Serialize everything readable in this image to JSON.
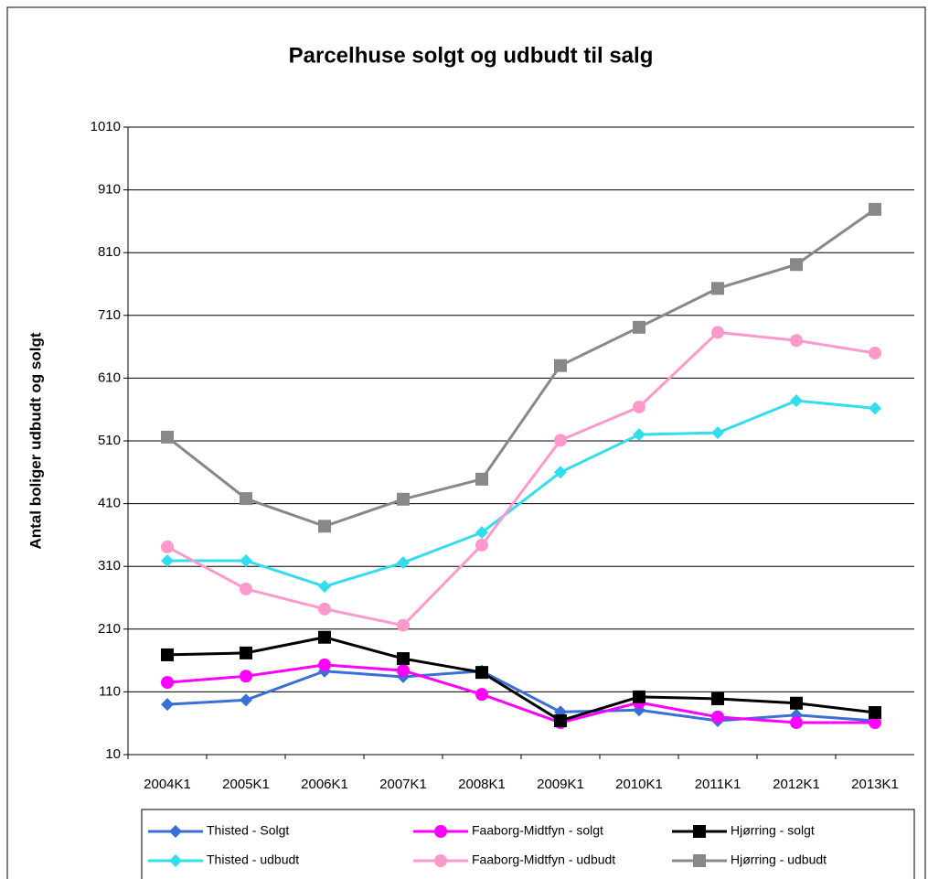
{
  "chart_data": {
    "type": "line",
    "title": "Parcelhuse solgt og udbudt til salg",
    "y_label": "Antal boliger udbudt og solgt",
    "categories": [
      "2004K1",
      "2005K1",
      "2006K1",
      "2007K1",
      "2008K1",
      "2009K1",
      "2010K1",
      "2011K1",
      "2012K1",
      "2013K1"
    ],
    "series": [
      {
        "name": "Thisted - Solgt",
        "color": "#3a6fd8",
        "marker": "diamond",
        "values": [
          90,
          97,
          143,
          134,
          143,
          78,
          81,
          64,
          73,
          64
        ]
      },
      {
        "name": "Faaborg-Midtfyn - solgt",
        "color": "#ff00ff",
        "marker": "circle",
        "values": [
          125,
          135,
          153,
          144,
          106,
          61,
          93,
          70,
          61,
          61
        ]
      },
      {
        "name": "Hjørring - solgt",
        "color": "#000000",
        "marker": "square",
        "values": [
          169,
          172,
          197,
          163,
          141,
          64,
          102,
          99,
          92,
          77
        ]
      },
      {
        "name": "Thisted - udbudt",
        "color": "#33ddee",
        "marker": "diamond",
        "values": [
          319,
          319,
          278,
          316,
          364,
          460,
          520,
          523,
          574,
          562
        ]
      },
      {
        "name": "Faaborg-Midtfyn - udbudt",
        "color": "#ff99cc",
        "marker": "circle",
        "values": [
          341,
          274,
          242,
          216,
          344,
          511,
          564,
          683,
          670,
          650
        ]
      },
      {
        "name": "Hjørring - udbudt",
        "color": "#888888",
        "marker": "square",
        "values": [
          516,
          418,
          374,
          417,
          449,
          630,
          691,
          753,
          791,
          879
        ]
      }
    ],
    "ylim": [
      10,
      1010
    ],
    "yticks": [
      10,
      110,
      210,
      310,
      410,
      510,
      610,
      710,
      810,
      910,
      1010
    ],
    "grid": true,
    "legend": "bottom"
  }
}
